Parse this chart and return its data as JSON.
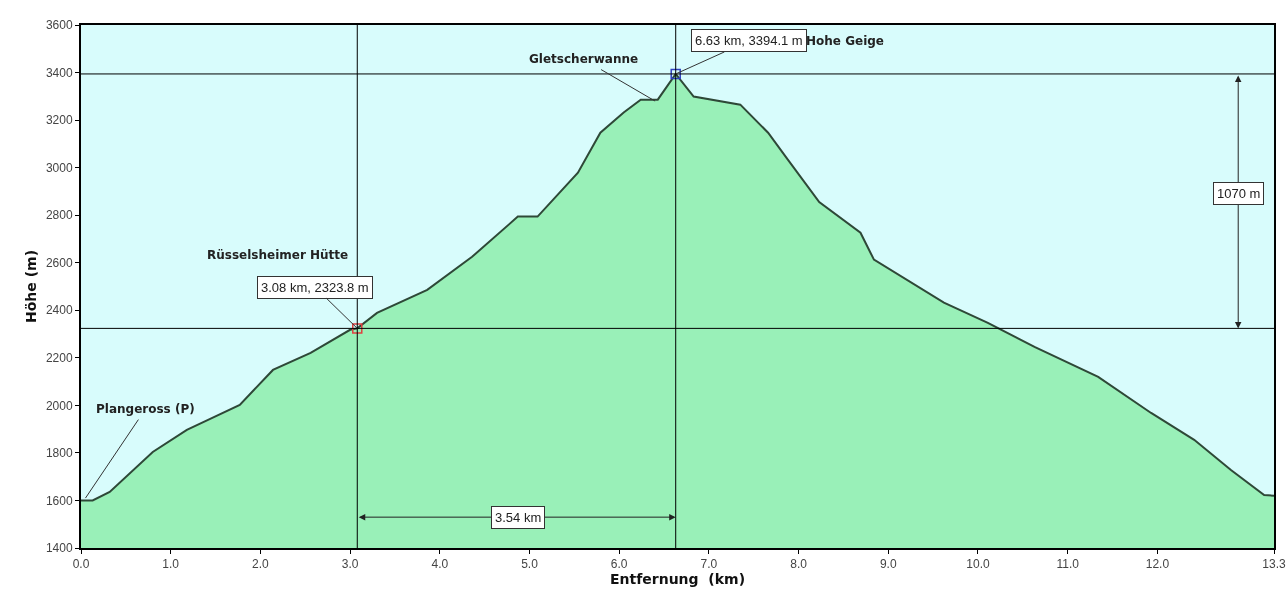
{
  "chart_data": {
    "type": "area",
    "xlabel": "Entfernung  (km)",
    "ylabel": "Höhe (m)",
    "xlim": [
      0,
      13.3
    ],
    "ylim": [
      1400,
      3600
    ],
    "xticks": [
      {
        "value": 0,
        "label": "0.0"
      },
      {
        "value": 1,
        "label": "1.0"
      },
      {
        "value": 2,
        "label": "2.0"
      },
      {
        "value": 3,
        "label": "3.0"
      },
      {
        "value": 4,
        "label": "4.0"
      },
      {
        "value": 5,
        "label": "5.0"
      },
      {
        "value": 6,
        "label": "6.0"
      },
      {
        "value": 7,
        "label": "7.0"
      },
      {
        "value": 8,
        "label": "8.0"
      },
      {
        "value": 9,
        "label": "9.0"
      },
      {
        "value": 10,
        "label": "10.0"
      },
      {
        "value": 11,
        "label": "11.0"
      },
      {
        "value": 12,
        "label": "12.0"
      },
      {
        "value": 13.3,
        "label": "13.3"
      }
    ],
    "yticks": [
      1400,
      1600,
      1800,
      2000,
      2200,
      2400,
      2600,
      2800,
      3000,
      3200,
      3400,
      3600
    ],
    "grid": false,
    "series": [
      {
        "color": "#99f0b8",
        "x": [
          0,
          0.13,
          0.32,
          0.8,
          1.18,
          1.44,
          1.77,
          2.14,
          2.56,
          3.0,
          3.08,
          3.3,
          3.86,
          4.36,
          4.87,
          5.09,
          5.54,
          5.79,
          6.05,
          6.24,
          6.43,
          6.63,
          6.83,
          7.35,
          7.66,
          7.88,
          8.23,
          8.69,
          8.84,
          9.62,
          10.11,
          10.63,
          11.34,
          11.93,
          12.41,
          12.82,
          13.19,
          13.3
        ],
        "values": [
          1600,
          1600,
          1636,
          1804,
          1897,
          1943,
          2002,
          2149,
          2221,
          2318,
          2323.8,
          2389,
          2486,
          2625,
          2794,
          2794,
          2979,
          3147,
          3232,
          3286,
          3286,
          3394.1,
          3299,
          3265,
          3147,
          3034,
          2855,
          2726,
          2613,
          2432,
          2347,
          2246,
          2120,
          1968,
          1855,
          1728,
          1623,
          1620
        ]
      },
      {
        "type": "scatter",
        "marker": "square",
        "x": [
          3.08,
          6.63
        ],
        "values": [
          2323.8,
          3394.1
        ],
        "colors": [
          "#e04040",
          "#3040c0"
        ]
      }
    ],
    "ref_lines": [
      {
        "axis": "x",
        "value": 3.08,
        "color": "#000000"
      },
      {
        "axis": "x",
        "value": 6.63,
        "color": "#000000"
      },
      {
        "axis": "y",
        "value": 2323.8,
        "color": "#000000"
      },
      {
        "axis": "y",
        "value": 3394.1,
        "color": "#000000"
      }
    ],
    "annotations": [
      {
        "text": "Plangeross (P)",
        "x": 0.05,
        "y": 1610
      },
      "Rüsselsheimer Hütte",
      {
        "text": "3.08 km, 2323.8 m",
        "x": 3.08,
        "y": 2323.8
      },
      {
        "text": "Gletscherwanne",
        "x": 6.4,
        "y": 3280
      },
      {
        "text": "6.63 km, 3394.1 m",
        "x": 6.63,
        "y": 3394.1
      },
      "Hohe Geige",
      "3.54 km",
      "1070 m"
    ]
  }
}
